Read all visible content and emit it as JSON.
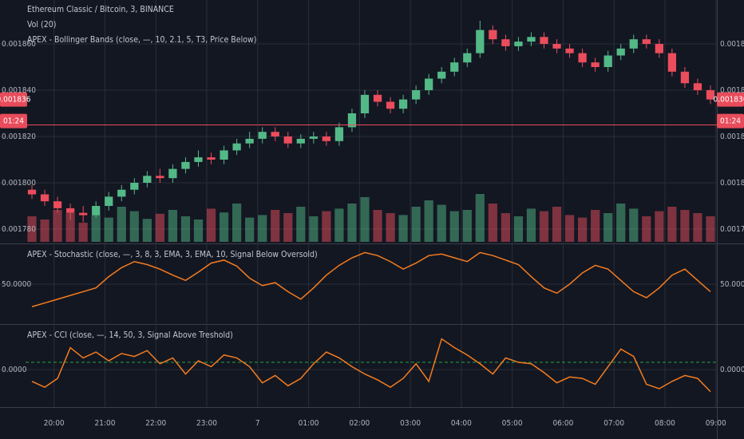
{
  "chart_data": [
    {
      "type": "candlestick",
      "title": "Ethereum Classic / Bitcoin, 3, BINANCE",
      "subtitle": "Vol (20)",
      "indicator": "APEX - Bollinger Bands (close, —, 10, 2.1, 5, T3, Price Below)",
      "open": [
        0.001797,
        0.001795,
        0.001792,
        0.001789,
        0.001787,
        0.001786,
        0.00179,
        0.001794,
        0.001797,
        0.0018,
        0.001803,
        0.001802,
        0.001806,
        0.001809,
        0.001811,
        0.00181,
        0.001814,
        0.001817,
        0.001819,
        0.001822,
        0.00182,
        0.001817,
        0.001819,
        0.00182,
        0.001818,
        0.001824,
        0.00183,
        0.001838,
        0.001835,
        0.001832,
        0.001836,
        0.00184,
        0.001845,
        0.001848,
        0.001852,
        0.001856,
        0.001866,
        0.001862,
        0.001859,
        0.001861,
        0.001863,
        0.00186,
        0.001858,
        0.001856,
        0.001852,
        0.00185,
        0.001855,
        0.001858,
        0.001862,
        0.00186,
        0.001856,
        0.001848,
        0.001843,
        0.00184
      ],
      "high": [
        0.001799,
        0.001797,
        0.001794,
        0.001791,
        0.00179,
        0.001792,
        0.001796,
        0.001799,
        0.001802,
        0.001805,
        0.001806,
        0.001808,
        0.001811,
        0.001814,
        0.001813,
        0.001816,
        0.001819,
        0.001822,
        0.001824,
        0.001824,
        0.001822,
        0.001821,
        0.001822,
        0.001822,
        0.001826,
        0.001832,
        0.00184,
        0.00184,
        0.001837,
        0.001838,
        0.001842,
        0.001847,
        0.00185,
        0.001854,
        0.001858,
        0.00187,
        0.001868,
        0.001864,
        0.001863,
        0.001865,
        0.001865,
        0.001862,
        0.00186,
        0.001858,
        0.001854,
        0.001857,
        0.00186,
        0.001864,
        0.001864,
        0.001862,
        0.001858,
        0.00185,
        0.001845,
        0.001842
      ],
      "low": [
        0.001793,
        0.00179,
        0.001787,
        0.001784,
        0.001783,
        0.001785,
        0.001788,
        0.001792,
        0.001795,
        0.001798,
        0.0018,
        0.0018,
        0.001804,
        0.001807,
        0.001808,
        0.001808,
        0.001812,
        0.001815,
        0.001817,
        0.001818,
        0.001815,
        0.001815,
        0.001817,
        0.001816,
        0.001816,
        0.001822,
        0.001828,
        0.001833,
        0.00183,
        0.00183,
        0.001834,
        0.001838,
        0.001843,
        0.001846,
        0.00185,
        0.001854,
        0.00186,
        0.001857,
        0.001857,
        0.001859,
        0.001858,
        0.001856,
        0.001854,
        0.00185,
        0.001848,
        0.001848,
        0.001853,
        0.001856,
        0.001858,
        0.001854,
        0.001846,
        0.001841,
        0.001838,
        0.001834
      ],
      "close": [
        0.001795,
        0.001792,
        0.001789,
        0.001787,
        0.001786,
        0.00179,
        0.001794,
        0.001797,
        0.0018,
        0.001803,
        0.001802,
        0.001806,
        0.001809,
        0.001811,
        0.00181,
        0.001814,
        0.001817,
        0.001819,
        0.001822,
        0.00182,
        0.001817,
        0.001819,
        0.00182,
        0.001818,
        0.001824,
        0.00183,
        0.001838,
        0.001835,
        0.001832,
        0.001836,
        0.00184,
        0.001845,
        0.001848,
        0.001852,
        0.001856,
        0.001866,
        0.001862,
        0.001859,
        0.001861,
        0.001863,
        0.00186,
        0.001858,
        0.001856,
        0.001852,
        0.00185,
        0.001855,
        0.001858,
        0.001862,
        0.00186,
        0.001856,
        0.001848,
        0.001843,
        0.00184,
        0.001836
      ],
      "volume": [
        40,
        35,
        50,
        45,
        30,
        42,
        38,
        55,
        48,
        36,
        44,
        50,
        40,
        35,
        52,
        46,
        60,
        38,
        42,
        50,
        45,
        55,
        40,
        48,
        52,
        60,
        70,
        50,
        45,
        42,
        55,
        65,
        58,
        48,
        50,
        75,
        60,
        45,
        40,
        52,
        48,
        55,
        42,
        38,
        50,
        45,
        60,
        52,
        40,
        48,
        55,
        50,
        45,
        40
      ],
      "up_color": "#53b987",
      "down_color": "#eb4d5c",
      "ylim": [
        0.00177379,
        0.00187897
      ],
      "yticks": [
        {
          "value": 0.00178,
          "label": "0.001780"
        },
        {
          "value": 0.0018,
          "label": "0.001800"
        },
        {
          "value": 0.00182,
          "label": "0.001820"
        },
        {
          "value": 0.00184,
          "label": "0.001840"
        },
        {
          "value": 0.00186,
          "label": "0.001860"
        }
      ],
      "last_price": {
        "value": 0.001836,
        "label": "0.001836"
      },
      "countdown": "01:24",
      "alert_line": 0.001825
    },
    {
      "type": "line",
      "title": "APEX - Stochastic (close, —, 3, 8, 3, EMA, 3, EMA, 10, Signal Below Oversold)",
      "color": "#f57c1f",
      "values": [
        20,
        25,
        30,
        35,
        40,
        45,
        60,
        72,
        80,
        76,
        70,
        62,
        55,
        66,
        78,
        82,
        74,
        58,
        48,
        52,
        40,
        30,
        45,
        62,
        75,
        85,
        92,
        88,
        80,
        70,
        78,
        88,
        90,
        85,
        80,
        92,
        88,
        82,
        76,
        60,
        45,
        38,
        50,
        65,
        75,
        70,
        55,
        40,
        32,
        45,
        62,
        70,
        55,
        40
      ],
      "ylim": [
        -2,
        102
      ],
      "yticks": [
        {
          "value": 50,
          "label": "50.0000"
        }
      ]
    },
    {
      "type": "line",
      "title": "APEX - CCI (close, —, 14, 50, 3, Signal Above Treshold)",
      "color": "#f57c1f",
      "values": [
        -80,
        -120,
        -60,
        150,
        80,
        120,
        60,
        110,
        90,
        130,
        40,
        80,
        -30,
        60,
        20,
        100,
        80,
        20,
        -90,
        -40,
        -110,
        -60,
        40,
        120,
        80,
        20,
        -30,
        -70,
        -120,
        -60,
        40,
        -80,
        210,
        150,
        100,
        40,
        -30,
        80,
        50,
        40,
        -20,
        -90,
        -50,
        -60,
        -100,
        20,
        140,
        90,
        -100,
        -130,
        -80,
        -40,
        -60,
        -150
      ],
      "ylim": [
        -250,
        300
      ],
      "yticks": [
        {
          "value": 0,
          "label": "0.0000"
        }
      ],
      "threshold": 50,
      "xlim": [
        19.44,
        33.02
      ],
      "xticks": [
        {
          "value": 20,
          "label": "20:00"
        },
        {
          "value": 21,
          "label": "21:00"
        },
        {
          "value": 22,
          "label": "22:00"
        },
        {
          "value": 23,
          "label": "23:00"
        },
        {
          "value": 24,
          "label": "7"
        },
        {
          "value": 25,
          "label": "01:00"
        },
        {
          "value": 26,
          "label": "02:00"
        },
        {
          "value": 27,
          "label": "03:00"
        },
        {
          "value": 28,
          "label": "04:00"
        },
        {
          "value": 29,
          "label": "05:00"
        },
        {
          "value": 30,
          "label": "06:00"
        },
        {
          "value": 31,
          "label": "07:00"
        },
        {
          "value": 32,
          "label": "08:00"
        },
        {
          "value": 33,
          "label": "09:00"
        }
      ]
    }
  ]
}
